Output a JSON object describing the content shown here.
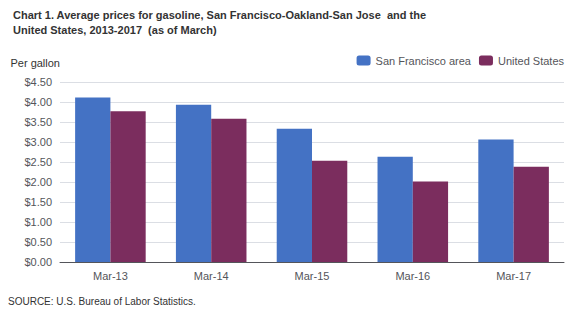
{
  "chart_data": {
    "type": "bar",
    "title": "Chart 1. Average prices for gasoline, San Francisco-Oakland-San Jose  and the",
    "subtitle": "United States, 2013-2017  (as of March)",
    "ylabel": "Per gallon",
    "categories": [
      "Mar-13",
      "Mar-14",
      "Mar-15",
      "Mar-16",
      "Mar-17"
    ],
    "series": [
      {
        "name": "San Francisco area",
        "color": "#4472C4",
        "values": [
          4.11,
          3.93,
          3.33,
          2.63,
          3.06
        ]
      },
      {
        "name": "United States",
        "color": "#7B2D5E",
        "values": [
          3.77,
          3.58,
          2.53,
          2.01,
          2.38
        ]
      }
    ],
    "ylim": [
      0,
      4.5
    ],
    "yticks": [
      {
        "value": 0,
        "label": "$0.00"
      },
      {
        "value": 0.5,
        "label": "$0.50"
      },
      {
        "value": 1,
        "label": "$1.00"
      },
      {
        "value": 1.5,
        "label": "$1.50"
      },
      {
        "value": 2,
        "label": "$2.00"
      },
      {
        "value": 2.5,
        "label": "$2.50"
      },
      {
        "value": 3,
        "label": "$3.00"
      },
      {
        "value": 3.5,
        "label": "$3.50"
      },
      {
        "value": 4,
        "label": "$4.00"
      },
      {
        "value": 4.5,
        "label": "$4.50"
      }
    ],
    "grid": true,
    "legend": "upper right",
    "annotations": [
      "SOURCE: U.S. Bureau of Labor Statistics."
    ]
  }
}
